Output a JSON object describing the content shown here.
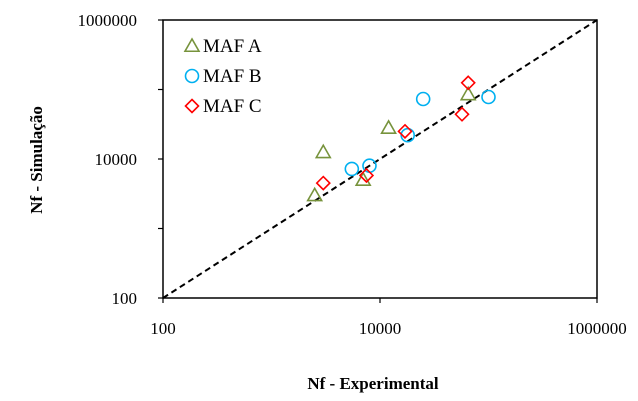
{
  "chart_data": {
    "type": "scatter",
    "title": "",
    "xlabel": "Nf - Experimental",
    "ylabel": "Nf - Simulação",
    "xscale": "log",
    "yscale": "log",
    "xlim": [
      100,
      1000000
    ],
    "ylim": [
      100,
      1000000
    ],
    "x_ticks": [
      100,
      10000,
      1000000
    ],
    "y_ticks": [
      100,
      10000,
      1000000
    ],
    "x_tick_labels": [
      "100",
      "10000",
      "1000000"
    ],
    "y_tick_labels": [
      "100",
      "10000",
      "1000000"
    ],
    "grid": false,
    "legend_position": "top-left",
    "reference_line": {
      "style": "dashed",
      "color": "#000000",
      "points": [
        [
          100,
          100
        ],
        [
          1000000,
          1000000
        ]
      ]
    },
    "series": [
      {
        "name": "MAF A",
        "marker": "triangle",
        "color": "#77933c",
        "points": [
          {
            "x": 2500,
            "y": 3000
          },
          {
            "x": 3000,
            "y": 12500
          },
          {
            "x": 7000,
            "y": 5000
          },
          {
            "x": 12000,
            "y": 28000
          },
          {
            "x": 65000,
            "y": 85000
          }
        ]
      },
      {
        "name": "MAF B",
        "marker": "circle",
        "color": "#00b0f0",
        "points": [
          {
            "x": 5500,
            "y": 7200
          },
          {
            "x": 8000,
            "y": 8000
          },
          {
            "x": 18000,
            "y": 22000
          },
          {
            "x": 25000,
            "y": 73000
          },
          {
            "x": 100000,
            "y": 78000
          }
        ]
      },
      {
        "name": "MAF C",
        "marker": "diamond",
        "color": "#ff0000",
        "points": [
          {
            "x": 3000,
            "y": 4500
          },
          {
            "x": 7500,
            "y": 5800
          },
          {
            "x": 17000,
            "y": 25000
          },
          {
            "x": 57000,
            "y": 44000
          },
          {
            "x": 65000,
            "y": 125000
          }
        ]
      }
    ]
  }
}
